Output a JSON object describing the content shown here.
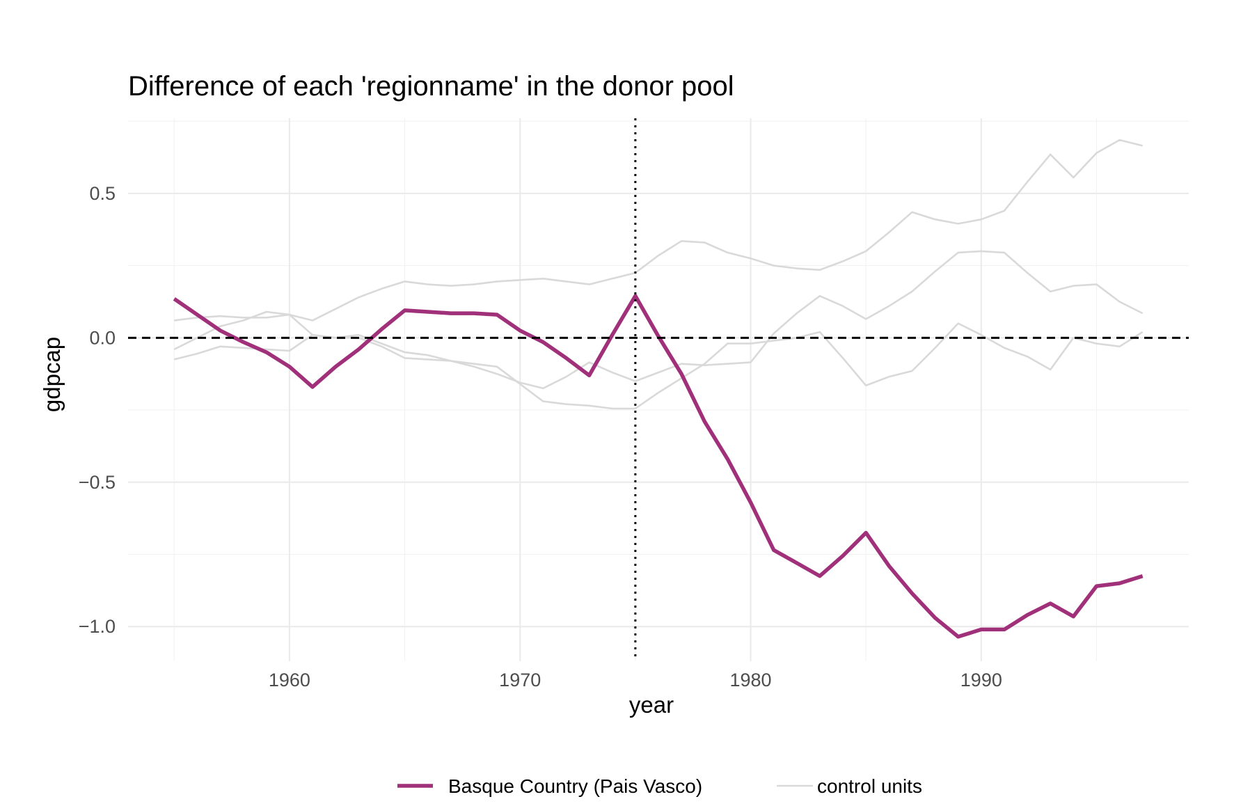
{
  "chart_data": {
    "type": "line",
    "title": "Difference of each 'regionname' in the donor pool",
    "xlabel": "year",
    "ylabel": "gdpcap",
    "xlim": [
      1953,
      1999
    ],
    "ylim": [
      -1.12,
      0.76
    ],
    "x_ticks": [
      1960,
      1970,
      1980,
      1990
    ],
    "x_tick_labels": [
      "1960",
      "1970",
      "1980",
      "1990"
    ],
    "y_ticks": [
      0.5,
      0.0,
      -0.5,
      -1.0
    ],
    "y_tick_labels": [
      "0.5",
      "0.0",
      "−0.5",
      "−1.0"
    ],
    "grid": true,
    "legend_position": "bottom",
    "reference_lines": [
      {
        "orientation": "vertical",
        "value": 1975,
        "style": "dotted",
        "color": "#000000"
      },
      {
        "orientation": "horizontal",
        "value": 0,
        "style": "dashed",
        "color": "#000000"
      }
    ],
    "x": [
      1955,
      1956,
      1957,
      1958,
      1959,
      1960,
      1961,
      1962,
      1963,
      1964,
      1965,
      1966,
      1967,
      1968,
      1969,
      1970,
      1971,
      1972,
      1973,
      1974,
      1975,
      1976,
      1977,
      1978,
      1979,
      1980,
      1981,
      1982,
      1983,
      1984,
      1985,
      1986,
      1987,
      1988,
      1989,
      1990,
      1991,
      1992,
      1993,
      1994,
      1995,
      1996,
      1997
    ],
    "series": [
      {
        "name": "Basque Country (Pais Vasco)",
        "color": "#a0307a",
        "values": [
          0.135,
          0.08,
          0.025,
          -0.015,
          -0.05,
          -0.1,
          -0.17,
          -0.1,
          -0.04,
          0.03,
          0.095,
          0.09,
          0.085,
          0.085,
          0.08,
          0.025,
          -0.015,
          -0.07,
          -0.13,
          0.01,
          0.145,
          0.005,
          -0.125,
          -0.29,
          -0.42,
          -0.57,
          -0.735,
          -0.78,
          -0.825,
          -0.755,
          -0.675,
          -0.79,
          -0.885,
          -0.97,
          -1.035,
          -1.01,
          -1.01,
          -0.96,
          -0.92,
          -0.965,
          -0.86,
          -0.85,
          -0.825
        ]
      },
      {
        "name": "control units",
        "color": "#d9d9d9",
        "values": [
          0.06,
          0.07,
          0.075,
          0.07,
          0.07,
          0.08,
          0.06,
          0.1,
          0.14,
          0.17,
          0.195,
          0.185,
          0.18,
          0.185,
          0.195,
          0.2,
          0.205,
          0.195,
          0.185,
          0.205,
          0.225,
          0.285,
          0.335,
          0.33,
          0.295,
          0.275,
          0.25,
          0.24,
          0.235,
          0.265,
          0.3,
          0.365,
          0.435,
          0.41,
          0.395,
          0.41,
          0.44,
          0.54,
          0.635,
          0.555,
          0.64,
          0.685,
          0.665
        ]
      },
      {
        "name": "control units",
        "color": "#d9d9d9",
        "values": [
          -0.04,
          0.0,
          0.04,
          0.06,
          0.09,
          0.08,
          0.01,
          0.0,
          0.01,
          -0.02,
          -0.05,
          -0.06,
          -0.08,
          -0.09,
          -0.1,
          -0.16,
          -0.22,
          -0.23,
          -0.235,
          -0.245,
          -0.245,
          -0.19,
          -0.14,
          -0.09,
          -0.02,
          -0.02,
          -0.01,
          0.0,
          0.02,
          -0.07,
          -0.165,
          -0.135,
          -0.115,
          -0.035,
          0.05,
          0.01,
          -0.035,
          -0.065,
          -0.11,
          0.0,
          -0.02,
          -0.03,
          0.02
        ]
      },
      {
        "name": "control units",
        "color": "#d9d9d9",
        "values": [
          -0.075,
          -0.055,
          -0.03,
          -0.035,
          -0.04,
          -0.045,
          0.01,
          0.0,
          0.0,
          -0.03,
          -0.07,
          -0.075,
          -0.08,
          -0.1,
          -0.125,
          -0.155,
          -0.175,
          -0.135,
          -0.085,
          -0.12,
          -0.15,
          -0.12,
          -0.09,
          -0.095,
          -0.09,
          -0.085,
          0.015,
          0.085,
          0.145,
          0.11,
          0.065,
          0.11,
          0.16,
          0.23,
          0.295,
          0.3,
          0.295,
          0.225,
          0.16,
          0.18,
          0.185,
          0.125,
          0.085
        ]
      }
    ],
    "legend": [
      {
        "label": "Basque Country (Pais Vasco)",
        "color": "#a0307a"
      },
      {
        "label": "control units",
        "color": "#d9d9d9"
      }
    ]
  }
}
